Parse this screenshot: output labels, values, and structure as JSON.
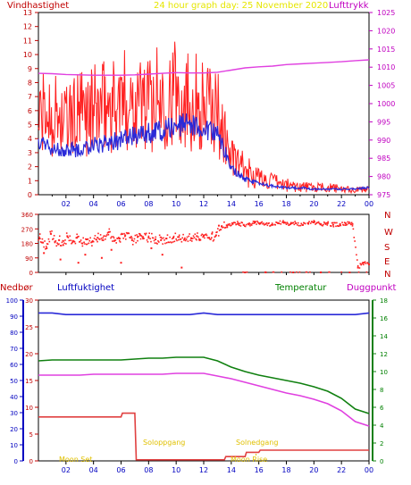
{
  "colors": {
    "wind": "#ff2020",
    "wind_avg": "#2a2ad8",
    "pressure": "#e040e0",
    "title": "#e6e600",
    "humidity": "#2a2ad8",
    "temperature": "#108010",
    "dewpoint": "#e040e0",
    "precip": "#e04040",
    "frame": "#000000",
    "text_blue": "#0000c0",
    "text_red": "#c00000",
    "text_green": "#008000",
    "text_magenta": "#c000c0",
    "sun_text": "#e0c000"
  },
  "header": {
    "left_label": "Vindhastighet",
    "title": "24 hour graph day:  25 November 2020",
    "right_label": "Lufttrykk"
  },
  "bottom_header": {
    "left_label": "Nedbør",
    "humidity_label": "Luftfuktighet",
    "temperature_label": "Temperatur",
    "dewpoint_label": "Duggpunkt"
  },
  "compass_labels": [
    "N",
    "W",
    "S",
    "E",
    "N"
  ],
  "annotations": {
    "moon_set": "Moon Set",
    "sunrise": "Soloppgang",
    "sunset": "Solnedgang",
    "moon_rise": "Moon Rise"
  },
  "chart_data": [
    {
      "type": "line",
      "id": "wind",
      "x_ticks": [
        "02",
        "04",
        "06",
        "08",
        "10",
        "12",
        "14",
        "16",
        "18",
        "20",
        "22",
        "00"
      ],
      "ylim_left": [
        0,
        13
      ],
      "left_ticks": [
        "0",
        "1",
        "2",
        "3",
        "4",
        "5",
        "6",
        "7",
        "8",
        "9",
        "10",
        "11",
        "12",
        "13"
      ],
      "ylim_right": [
        975,
        1025
      ],
      "right_ticks": [
        "975",
        "980",
        "985",
        "990",
        "995",
        "1000",
        "1005",
        "1010",
        "1015",
        "1020",
        "1025"
      ],
      "x_hours": [
        0,
        1,
        2,
        3,
        4,
        5,
        6,
        7,
        8,
        9,
        10,
        11,
        12,
        13,
        14,
        15,
        16,
        17,
        18,
        19,
        20,
        21,
        22,
        23,
        24
      ],
      "series": [
        {
          "name": "Vindhastighet",
          "axis": "left",
          "values": [
            5.5,
            5.8,
            5.2,
            5.7,
            6.0,
            6.3,
            6.6,
            6.9,
            6.6,
            7.0,
            7.3,
            6.9,
            6.3,
            5.9,
            2.6,
            1.7,
            1.2,
            0.9,
            0.7,
            0.6,
            0.5,
            0.5,
            0.4,
            0.3,
            0.5
          ]
        },
        {
          "name": "Wind average",
          "axis": "left",
          "values": [
            3.6,
            3.4,
            3.2,
            3.2,
            3.5,
            3.7,
            3.9,
            4.2,
            4.4,
            4.6,
            4.9,
            5.0,
            4.7,
            4.5,
            1.9,
            1.1,
            0.8,
            0.6,
            0.5,
            0.5,
            0.4,
            0.4,
            0.4,
            0.4,
            0.5
          ]
        },
        {
          "name": "Lufttrykk",
          "axis": "right",
          "values": [
            1008.3,
            1008.2,
            1008.0,
            1007.9,
            1007.8,
            1007.8,
            1007.8,
            1007.9,
            1008.1,
            1008.3,
            1008.5,
            1008.4,
            1008.4,
            1008.6,
            1009.2,
            1009.8,
            1010.1,
            1010.3,
            1010.7,
            1010.9,
            1011.1,
            1011.3,
            1011.5,
            1011.8,
            1012.0
          ]
        }
      ]
    },
    {
      "type": "scatter",
      "id": "wind_direction",
      "ylim": [
        0,
        360
      ],
      "left_ticks": [
        "0",
        "90",
        "180",
        "270",
        "360"
      ],
      "series": [
        {
          "name": "Vindretning",
          "x_hours": [
            0.1,
            0.3,
            0.6,
            0.9,
            1.2,
            1.5,
            1.8,
            2.1,
            2.5,
            2.8,
            3.2,
            3.5,
            3.9,
            4.3,
            4.7,
            5.1,
            5.5,
            5.9,
            6.3,
            6.8,
            7.2,
            7.6,
            8.0,
            8.5,
            8.9,
            9.3,
            9.8,
            10.2,
            10.6,
            11.1,
            11.5,
            12.0,
            12.4,
            12.9,
            13.3,
            13.7,
            14.1,
            14.5,
            14.9,
            15.3,
            15.7,
            16.1,
            16.5,
            17.0,
            17.4,
            17.8,
            18.3,
            18.7,
            19.2,
            19.6,
            20.0,
            20.5,
            21.0,
            21.4,
            21.9,
            22.3,
            22.8,
            23.2,
            23.6,
            24.0,
            0.4,
            1.6,
            2.9,
            3.4,
            4.6,
            5.3,
            6.0,
            7.4,
            8.2,
            9.0,
            10.4,
            11.7,
            12.6,
            13.1,
            15.0,
            16.5,
            18.5,
            20.5,
            22.6
          ],
          "values": [
            210,
            185,
            150,
            240,
            190,
            200,
            170,
            225,
            195,
            215,
            180,
            205,
            190,
            215,
            200,
            250,
            195,
            210,
            230,
            200,
            220,
            210,
            215,
            205,
            200,
            210,
            215,
            220,
            205,
            210,
            225,
            230,
            215,
            230,
            285,
            290,
            300,
            305,
            295,
            300,
            310,
            305,
            300,
            295,
            305,
            310,
            300,
            305,
            295,
            305,
            310,
            300,
            305,
            295,
            300,
            305,
            300,
            30,
            60,
            50,
            120,
            80,
            60,
            110,
            90,
            140,
            60,
            230,
            150,
            110,
            30,
            200,
            240,
            290,
            0,
            0,
            0,
            0,
            0
          ]
        }
      ]
    },
    {
      "type": "line",
      "id": "weather",
      "ylim_humidity": [
        0,
        100
      ],
      "humidity_ticks": [
        "0",
        "10",
        "20",
        "30",
        "40",
        "50",
        "60",
        "70",
        "80",
        "90",
        "100"
      ],
      "ylim_precip": [
        0,
        30
      ],
      "precip_ticks": [
        "0",
        "5",
        "10",
        "15",
        "20",
        "25",
        "30"
      ],
      "ylim_temperature": [
        0,
        18
      ],
      "temperature_ticks": [
        "0",
        "2",
        "4",
        "6",
        "8",
        "10",
        "12",
        "14",
        "16",
        "18"
      ],
      "x_hours": [
        0,
        1,
        2,
        3,
        4,
        5,
        6,
        7,
        8,
        9,
        10,
        11,
        12,
        13,
        14,
        15,
        16,
        17,
        18,
        19,
        20,
        21,
        22,
        23,
        24
      ],
      "series": [
        {
          "name": "Luftfuktighet",
          "axis": "humidity",
          "values": [
            92,
            92,
            91,
            91,
            91,
            91,
            91,
            91,
            91,
            91,
            91,
            91,
            92,
            91,
            91,
            91,
            91,
            91,
            91,
            91,
            91,
            91,
            91,
            91,
            92
          ]
        },
        {
          "name": "Temperatur",
          "axis": "temperature",
          "values": [
            11.2,
            11.3,
            11.3,
            11.3,
            11.3,
            11.3,
            11.3,
            11.4,
            11.5,
            11.5,
            11.6,
            11.6,
            11.6,
            11.2,
            10.5,
            10.0,
            9.6,
            9.3,
            9.0,
            8.7,
            8.3,
            7.8,
            7.0,
            5.8,
            5.3
          ]
        },
        {
          "name": "Duggpunkt",
          "axis": "temperature",
          "values": [
            9.6,
            9.6,
            9.6,
            9.6,
            9.7,
            9.7,
            9.7,
            9.7,
            9.7,
            9.7,
            9.8,
            9.8,
            9.8,
            9.5,
            9.2,
            8.8,
            8.4,
            8.0,
            7.6,
            7.3,
            6.9,
            6.4,
            5.6,
            4.4,
            3.9
          ]
        },
        {
          "name": "Nedbør",
          "axis": "precip",
          "x": [
            0,
            6.0,
            6.1,
            7.0,
            7.1,
            13.5,
            13.6,
            15.0,
            15.1,
            16.0,
            16.1,
            24
          ],
          "values": [
            8.2,
            8.2,
            8.9,
            8.9,
            0.2,
            0.2,
            0.8,
            0.8,
            1.6,
            1.6,
            2.0,
            2.0
          ]
        }
      ]
    }
  ]
}
